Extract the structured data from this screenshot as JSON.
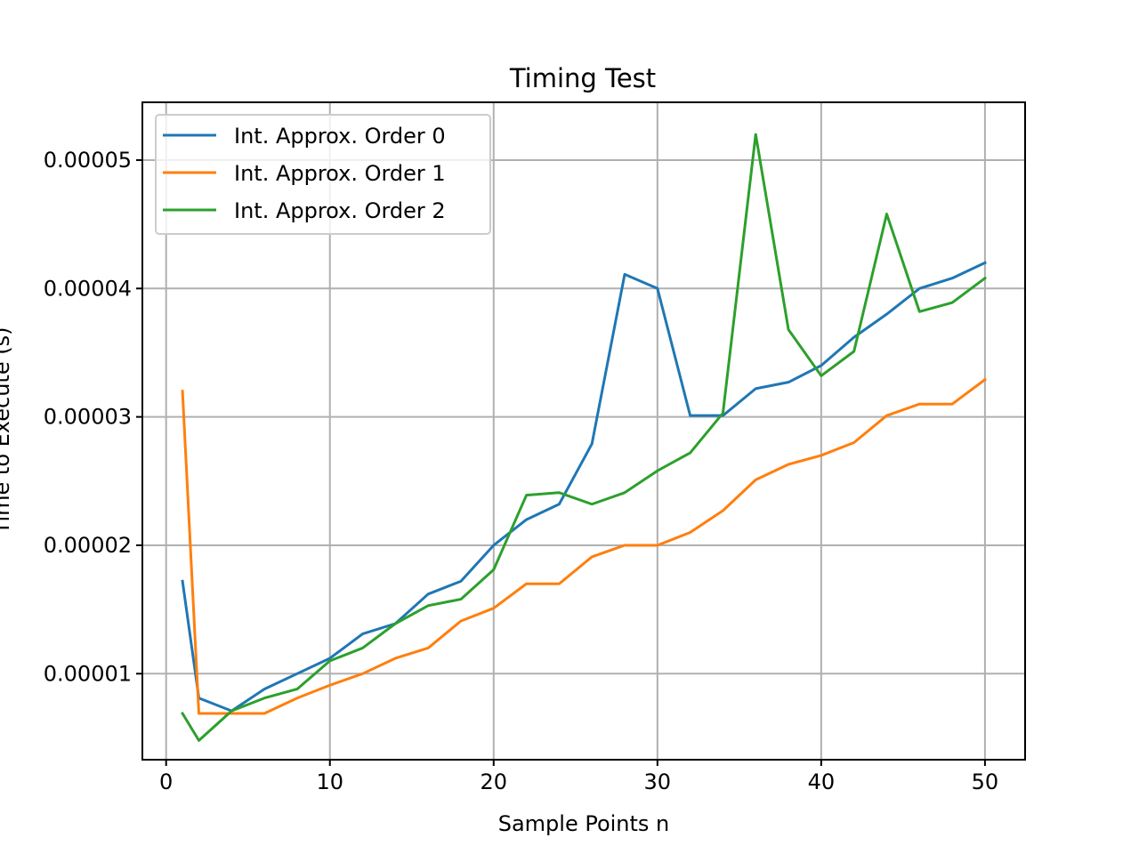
{
  "chart_data": {
    "type": "line",
    "title": "Timing Test",
    "xlabel": "Sample Points n",
    "ylabel": "Time to Execute (s)",
    "xlim": [
      -1.45,
      52.45
    ],
    "ylim": [
      3.3e-06,
      5.45e-05
    ],
    "xticks": [
      0,
      10,
      20,
      30,
      40,
      50
    ],
    "xtick_labels": [
      "0",
      "10",
      "20",
      "30",
      "40",
      "50"
    ],
    "yticks": [
      1e-05,
      2e-05,
      3e-05,
      4e-05,
      5e-05
    ],
    "ytick_labels": [
      "0.00001",
      "0.00002",
      "0.00003",
      "0.00004",
      "0.00005"
    ],
    "grid": true,
    "legend_position": "top-left",
    "x": [
      1,
      2,
      4,
      6,
      8,
      10,
      12,
      14,
      16,
      18,
      20,
      22,
      24,
      26,
      28,
      30,
      32,
      34,
      36,
      38,
      40,
      42,
      44,
      46,
      48,
      50
    ],
    "series": [
      {
        "name": "Int. Approx. Order 0",
        "color": "#1f77b4",
        "values": [
          1.72e-05,
          8.1e-06,
          7.1e-06,
          8.8e-06,
          1e-05,
          1.12e-05,
          1.31e-05,
          1.39e-05,
          1.62e-05,
          1.72e-05,
          2e-05,
          2.2e-05,
          2.32e-05,
          2.79e-05,
          4.11e-05,
          4e-05,
          3.01e-05,
          3.01e-05,
          3.22e-05,
          3.27e-05,
          3.4e-05,
          3.62e-05,
          3.8e-05,
          4e-05,
          4.08e-05,
          4.2e-05
        ]
      },
      {
        "name": "Int. Approx. Order 1",
        "color": "#ff7f0e",
        "values": [
          3.2e-05,
          6.9e-06,
          6.9e-06,
          6.9e-06,
          8.1e-06,
          9.1e-06,
          1e-05,
          1.12e-05,
          1.2e-05,
          1.41e-05,
          1.51e-05,
          1.7e-05,
          1.7e-05,
          1.91e-05,
          2e-05,
          2e-05,
          2.1e-05,
          2.27e-05,
          2.51e-05,
          2.63e-05,
          2.7e-05,
          2.8e-05,
          3.01e-05,
          3.1e-05,
          3.1e-05,
          3.29e-05
        ]
      },
      {
        "name": "Int. Approx. Order 2",
        "color": "#2ca02c",
        "values": [
          6.9e-06,
          4.8e-06,
          7.1e-06,
          8.1e-06,
          8.8e-06,
          1.1e-05,
          1.2e-05,
          1.39e-05,
          1.53e-05,
          1.58e-05,
          1.81e-05,
          2.39e-05,
          2.41e-05,
          2.32e-05,
          2.41e-05,
          2.58e-05,
          2.72e-05,
          3.03e-05,
          5.2e-05,
          3.68e-05,
          3.32e-05,
          3.51e-05,
          4.58e-05,
          3.82e-05,
          3.89e-05,
          4.08e-05
        ]
      }
    ]
  }
}
